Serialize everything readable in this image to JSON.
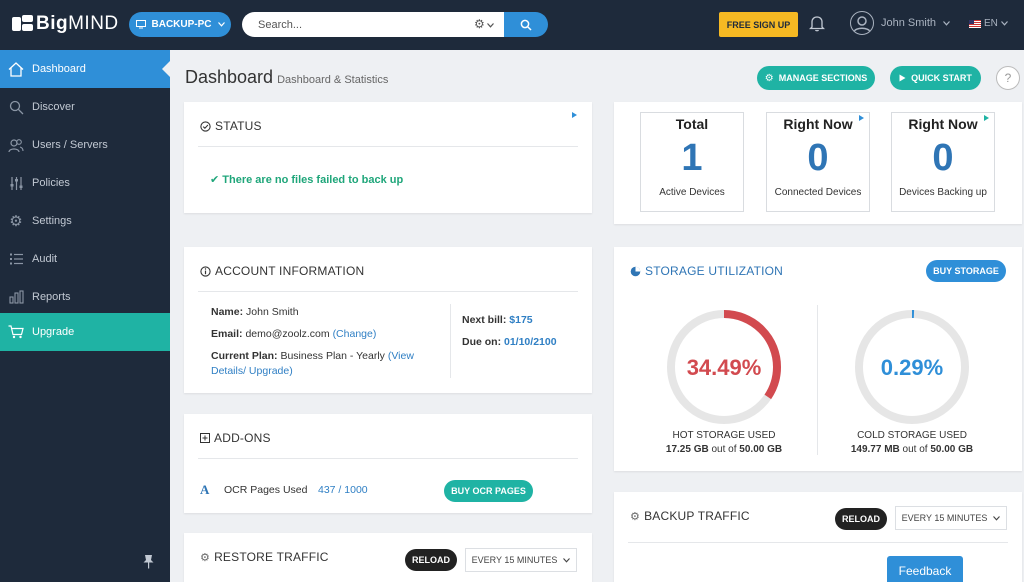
{
  "app": {
    "logo_bold": "Big",
    "logo_light": "MIND",
    "device": "BACKUP-PC",
    "search_placeholder": "Search...",
    "signup": "FREE SIGN UP",
    "user_name": "John Smith",
    "language": "EN"
  },
  "sidebar": {
    "items": [
      {
        "label": "Dashboard",
        "icon": "home-icon"
      },
      {
        "label": "Discover",
        "icon": "search-icon"
      },
      {
        "label": "Users / Servers",
        "icon": "users-icon"
      },
      {
        "label": "Policies",
        "icon": "sliders-icon"
      },
      {
        "label": "Settings",
        "icon": "gear-icon"
      },
      {
        "label": "Audit",
        "icon": "list-icon"
      },
      {
        "label": "Reports",
        "icon": "bar-chart-icon"
      },
      {
        "label": "Upgrade",
        "icon": "cart-icon"
      }
    ]
  },
  "header": {
    "title": "Dashboard",
    "subtitle": "Dashboard & Statistics",
    "manage_sections": "MANAGE SECTIONS",
    "quick_start": "QUICK START",
    "help": "?"
  },
  "status": {
    "title": "STATUS",
    "message": "There are no files failed to back up"
  },
  "account": {
    "title": "ACCOUNT INFORMATION",
    "name_label": "Name:",
    "name_value": "John Smith",
    "email_label": "Email:",
    "email_value": "demo@zoolz.com",
    "change_link": "(Change)",
    "plan_label": "Current Plan:",
    "plan_value": "Business Plan - Yearly",
    "plan_link_1": "(View",
    "plan_link_2": "Details/ Upgrade)",
    "next_bill_label": "Next bill:",
    "next_bill_value": "$175",
    "due_label": "Due on:",
    "due_value": "01/10/2100"
  },
  "addons": {
    "title": "ADD-ONS",
    "ocr_label": "OCR Pages Used",
    "ocr_value": "437 / 1000",
    "ocr_used": 437,
    "ocr_total": 1000,
    "buy_button": "BUY OCR PAGES"
  },
  "restore_traffic": {
    "title": "RESTORE TRAFFIC",
    "reload": "RELOAD",
    "interval": "EVERY 15 MINUTES"
  },
  "devices": [
    {
      "head": "Total",
      "value": "1",
      "label": "Active Devices"
    },
    {
      "head": "Right Now",
      "value": "0",
      "label": "Connected Devices"
    },
    {
      "head": "Right Now",
      "value": "0",
      "label": "Devices Backing up"
    }
  ],
  "storage": {
    "title": "STORAGE UTILIZATION",
    "buy_button": "BUY STORAGE",
    "hot": {
      "percent_text": "34.49%",
      "percent": 34.49,
      "color": "#d24a4f",
      "label": "HOT STORAGE USED",
      "used": "17.25 GB",
      "out_of": "out of",
      "total": "50.00 GB"
    },
    "cold": {
      "percent_text": "0.29%",
      "percent": 0.29,
      "color": "#2f8fd8",
      "label": "COLD STORAGE USED",
      "used": "149.77 MB",
      "out_of": "out of",
      "total": "50.00 GB"
    }
  },
  "backup_traffic": {
    "title": "BACKUP TRAFFIC",
    "reload": "RELOAD",
    "interval": "EVERY 15 MINUTES"
  },
  "feedback": "Feedback",
  "colors": {
    "topbar": "#1e2a3b",
    "accent_blue": "#2f8fd8",
    "accent_teal": "#1fb3a4",
    "signup_yellow": "#f6b923",
    "success_green": "#1fa67a"
  }
}
